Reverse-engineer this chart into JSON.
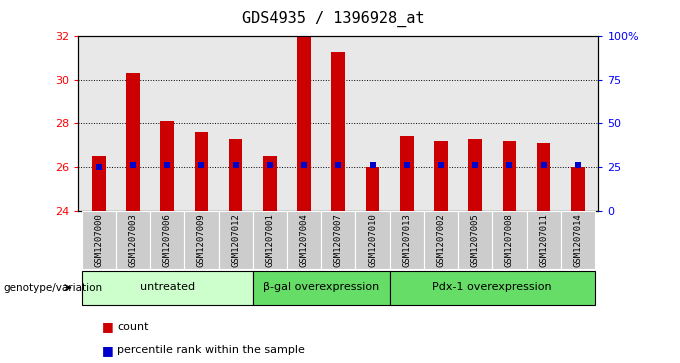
{
  "title": "GDS4935 / 1396928_at",
  "samples": [
    "GSM1207000",
    "GSM1207003",
    "GSM1207006",
    "GSM1207009",
    "GSM1207012",
    "GSM1207001",
    "GSM1207004",
    "GSM1207007",
    "GSM1207010",
    "GSM1207013",
    "GSM1207002",
    "GSM1207005",
    "GSM1207008",
    "GSM1207011",
    "GSM1207014"
  ],
  "counts": [
    26.5,
    30.3,
    28.1,
    27.6,
    27.3,
    26.5,
    32.0,
    31.3,
    26.0,
    27.4,
    27.2,
    27.3,
    27.2,
    27.1,
    26.0
  ],
  "percentiles": [
    25,
    26,
    26,
    26,
    26,
    26,
    26,
    26,
    26,
    26,
    26,
    26,
    26,
    26,
    26
  ],
  "groups": [
    {
      "label": "untreated",
      "start": 0,
      "end": 5,
      "color": "#ccffcc"
    },
    {
      "label": "β-gal overexpression",
      "start": 5,
      "end": 9,
      "color": "#66dd66"
    },
    {
      "label": "Pdx-1 overexpression",
      "start": 9,
      "end": 15,
      "color": "#66dd66"
    }
  ],
  "ylim_left": [
    24,
    32
  ],
  "ylim_right": [
    0,
    100
  ],
  "yticks_left": [
    24,
    26,
    28,
    30,
    32
  ],
  "yticks_right": [
    0,
    25,
    50,
    75,
    100
  ],
  "ytick_labels_right": [
    "0",
    "25",
    "50",
    "75",
    "100%"
  ],
  "bar_color": "#cc0000",
  "percentile_color": "#0000cc",
  "title_fontsize": 11,
  "bar_width": 0.4,
  "group_label": "genotype/variation"
}
